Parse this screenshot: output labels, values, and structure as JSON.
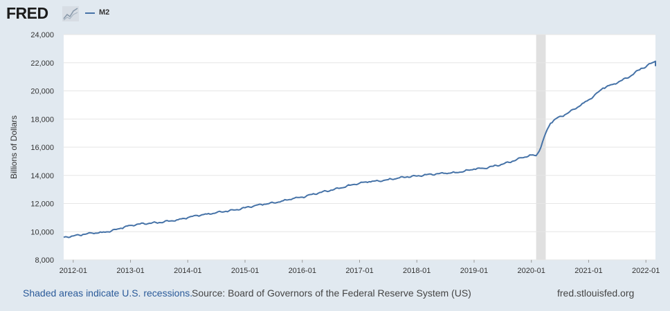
{
  "header": {
    "logo_text": "FRED",
    "logo_icon": "trend-chart-icon",
    "legend_label": "M2"
  },
  "colors": {
    "series": "#4572a7",
    "recession": "#e0e0e0",
    "background": "#e1e9f0",
    "plot": "#ffffff",
    "grid": "#e6e6e6"
  },
  "chart_data": {
    "type": "line",
    "title": "",
    "ylabel": "Billions of Dollars",
    "xlabel": "",
    "ylim": [
      8000,
      24000
    ],
    "yticks": [
      8000,
      10000,
      12000,
      14000,
      16000,
      18000,
      20000,
      22000,
      24000
    ],
    "ytick_labels": [
      "8,000",
      "10,000",
      "12,000",
      "14,000",
      "16,000",
      "18,000",
      "20,000",
      "22,000",
      "24,000"
    ],
    "xlim": [
      "2011-11",
      "2022-03"
    ],
    "xtick_labels": [
      "2012-01",
      "2013-01",
      "2014-01",
      "2015-01",
      "2016-01",
      "2017-01",
      "2018-01",
      "2019-01",
      "2020-01",
      "2021-01",
      "2022-01"
    ],
    "grid": true,
    "recessions": [
      {
        "start": "2020-02",
        "end": "2020-04"
      }
    ],
    "series": [
      {
        "name": "M2",
        "points": [
          [
            "2011-11",
            9600
          ],
          [
            "2012-01",
            9700
          ],
          [
            "2012-03",
            9800
          ],
          [
            "2012-05",
            9900
          ],
          [
            "2012-07",
            9950
          ],
          [
            "2012-09",
            10050
          ],
          [
            "2012-11",
            10250
          ],
          [
            "2013-01",
            10450
          ],
          [
            "2013-03",
            10550
          ],
          [
            "2013-05",
            10600
          ],
          [
            "2013-07",
            10650
          ],
          [
            "2013-09",
            10750
          ],
          [
            "2013-11",
            10850
          ],
          [
            "2014-01",
            11000
          ],
          [
            "2014-03",
            11150
          ],
          [
            "2014-05",
            11250
          ],
          [
            "2014-07",
            11350
          ],
          [
            "2014-09",
            11450
          ],
          [
            "2014-11",
            11550
          ],
          [
            "2015-01",
            11700
          ],
          [
            "2015-03",
            11850
          ],
          [
            "2015-05",
            11950
          ],
          [
            "2015-07",
            12050
          ],
          [
            "2015-09",
            12200
          ],
          [
            "2015-11",
            12350
          ],
          [
            "2016-01",
            12450
          ],
          [
            "2016-03",
            12650
          ],
          [
            "2016-05",
            12800
          ],
          [
            "2016-07",
            12950
          ],
          [
            "2016-09",
            13100
          ],
          [
            "2016-11",
            13300
          ],
          [
            "2017-01",
            13450
          ],
          [
            "2017-03",
            13550
          ],
          [
            "2017-05",
            13600
          ],
          [
            "2017-07",
            13700
          ],
          [
            "2017-09",
            13800
          ],
          [
            "2017-11",
            13900
          ],
          [
            "2018-01",
            13950
          ],
          [
            "2018-03",
            14050
          ],
          [
            "2018-05",
            14100
          ],
          [
            "2018-07",
            14150
          ],
          [
            "2018-09",
            14200
          ],
          [
            "2018-11",
            14300
          ],
          [
            "2019-01",
            14450
          ],
          [
            "2019-03",
            14500
          ],
          [
            "2019-05",
            14650
          ],
          [
            "2019-07",
            14800
          ],
          [
            "2019-09",
            15000
          ],
          [
            "2019-11",
            15250
          ],
          [
            "2020-01",
            15450
          ],
          [
            "2020-02",
            15400
          ],
          [
            "2020-03",
            16000
          ],
          [
            "2020-04",
            17000
          ],
          [
            "2020-05",
            17700
          ],
          [
            "2020-06",
            18000
          ],
          [
            "2020-08",
            18300
          ],
          [
            "2020-10",
            18700
          ],
          [
            "2020-12",
            19150
          ],
          [
            "2021-02",
            19600
          ],
          [
            "2021-04",
            20200
          ],
          [
            "2021-06",
            20450
          ],
          [
            "2021-08",
            20750
          ],
          [
            "2021-10",
            21100
          ],
          [
            "2021-12",
            21600
          ],
          [
            "2022-01",
            21700
          ],
          [
            "2022-02",
            21950
          ],
          [
            "2022-03",
            22100
          ],
          [
            "2022-03",
            21750
          ]
        ]
      }
    ]
  },
  "footer": {
    "recession_note": "Shaded areas indicate U.S. recessions.",
    "source": "Source: Board of Governors of the Federal Reserve System (US)",
    "site": "fred.stlouisfed.org"
  }
}
